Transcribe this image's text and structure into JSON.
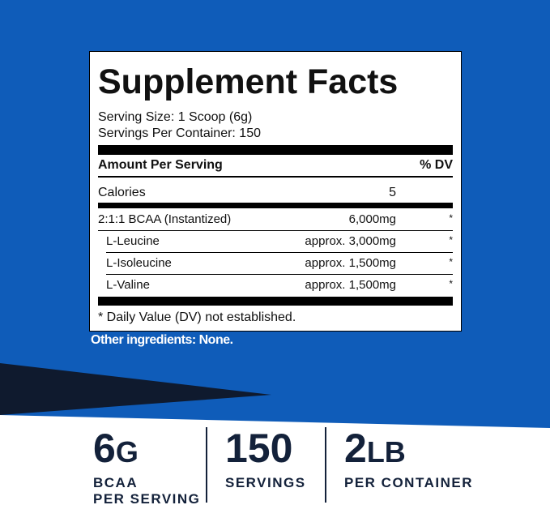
{
  "panel": {
    "title": "Supplement Facts",
    "serving_size": "Serving Size: 1 Scoop (6g)",
    "servings_per_container": "Servings Per Container: 150",
    "header": {
      "label": "Amount Per Serving",
      "dv": "% DV"
    },
    "calories": {
      "label": "Calories",
      "amount": "5"
    },
    "rows": [
      {
        "label": "2:1:1 BCAA (Instantized)",
        "amount": "6,000mg",
        "dv": "*"
      },
      {
        "label": "L-Leucine",
        "amount": "approx. 3,000mg",
        "dv": "*"
      },
      {
        "label": "L-Isoleucine",
        "amount": "approx. 1,500mg",
        "dv": "*"
      },
      {
        "label": "L-Valine",
        "amount": "approx. 1,500mg",
        "dv": "*"
      }
    ],
    "footnote": "* Daily Value (DV) not established."
  },
  "other_ingredients": "Other ingredients: None.",
  "stats": [
    {
      "value": "6",
      "unit": "G",
      "label": [
        "BCAA",
        "PER SERVING"
      ]
    },
    {
      "value": "150",
      "unit": "",
      "label": [
        "SERVINGS"
      ]
    },
    {
      "value": "2",
      "unit": "LB",
      "label": [
        "PER CONTAINER"
      ]
    }
  ]
}
